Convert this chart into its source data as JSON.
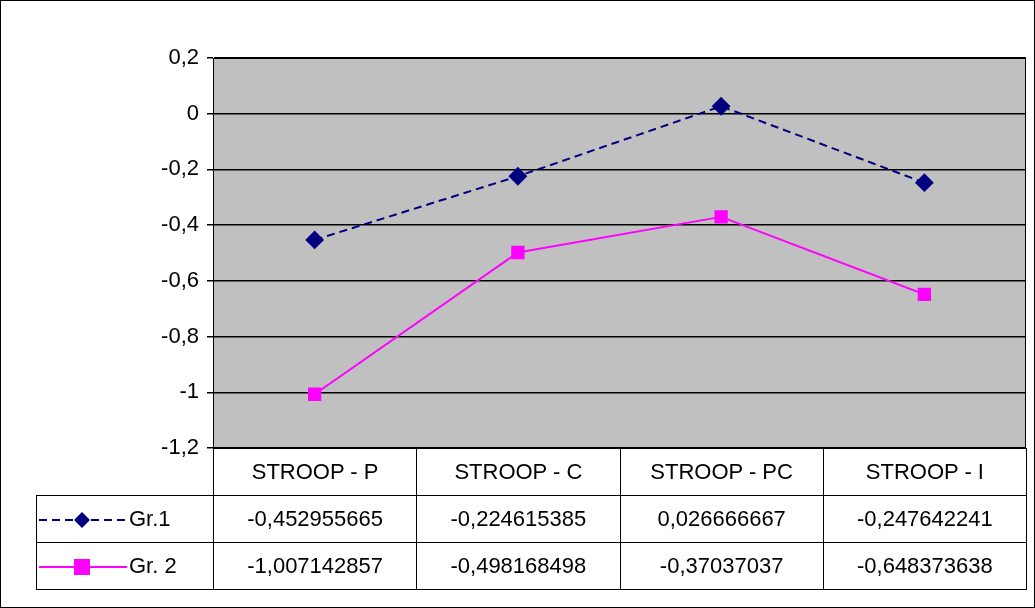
{
  "chart_data": {
    "type": "line",
    "categories": [
      "STROOP - P",
      "STROOP - C",
      "STROOP - PC",
      "STROOP - I"
    ],
    "series": [
      {
        "name": "Gr.1",
        "color": "#000080",
        "marker": "diamond",
        "line_style": "dashed",
        "values": [
          -0.452955665,
          -0.224615385,
          0.026666667,
          -0.247642241
        ],
        "value_labels": [
          "-0,452955665",
          "-0,224615385",
          "0,026666667",
          "-0,247642241"
        ]
      },
      {
        "name": "Gr. 2",
        "color": "#ff00ff",
        "marker": "square",
        "line_style": "solid",
        "values": [
          -1.007142857,
          -0.498168498,
          -0.37037037,
          -0.648373638
        ],
        "value_labels": [
          "-1,007142857",
          "-0,498168498",
          "-0,37037037",
          "-0,648373638"
        ]
      }
    ],
    "ylim": [
      -1.2,
      0.2
    ],
    "yticks": [
      {
        "value": -1.2,
        "label": "-1,2"
      },
      {
        "value": -1,
        "label": "-1"
      },
      {
        "value": -0.8,
        "label": "-0,8"
      },
      {
        "value": -0.6,
        "label": "-0,6"
      },
      {
        "value": -0.4,
        "label": "-0,4"
      },
      {
        "value": -0.2,
        "label": "-0,2"
      },
      {
        "value": 0,
        "label": "0"
      },
      {
        "value": 0.2,
        "label": "0,2"
      }
    ],
    "grid": "y",
    "legend": "bottom"
  }
}
